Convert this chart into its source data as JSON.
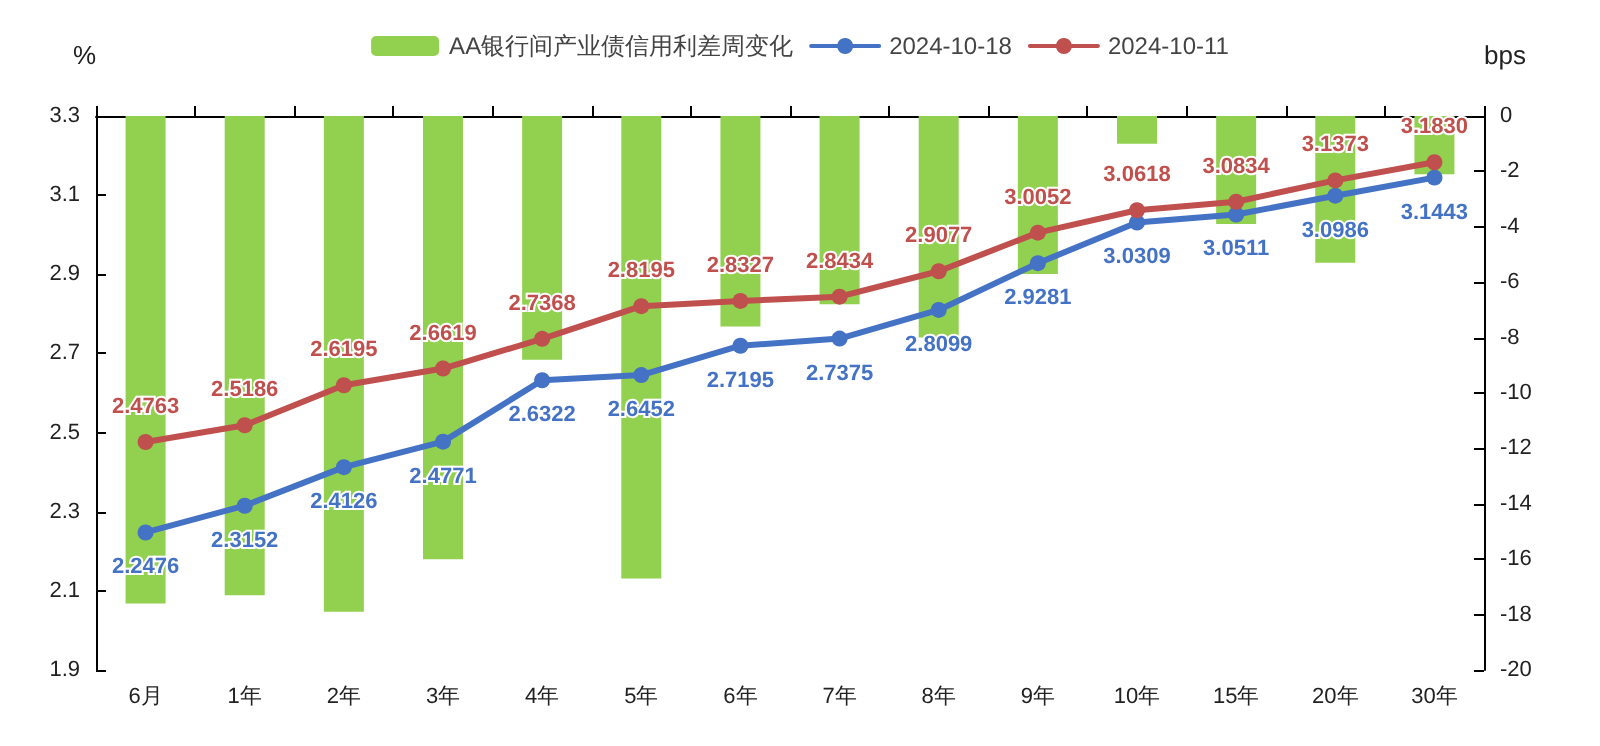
{
  "chart_data": {
    "type": "line",
    "categories": [
      "6月",
      "1年",
      "2年",
      "3年",
      "4年",
      "5年",
      "6年",
      "7年",
      "8年",
      "9年",
      "10年",
      "15年",
      "20年",
      "30年"
    ],
    "ylabel": "%",
    "y2label": "bps",
    "ylim": [
      1.9,
      3.3
    ],
    "yticks": [
      1.9,
      2.1,
      2.3,
      2.5,
      2.7,
      2.9,
      3.1,
      3.3
    ],
    "y2lim": [
      -20,
      0
    ],
    "y2ticks": [
      -20,
      -18,
      -16,
      -14,
      -12,
      -10,
      -8,
      -6,
      -4,
      -2,
      0
    ],
    "legend": "top",
    "grid": false,
    "marker": "circle",
    "series": [
      {
        "name": "AA银行间产业债信用利差周变化",
        "type": "bar",
        "axis": "y2",
        "color": "#92d050",
        "values": [
          -17.6,
          -17.3,
          -17.9,
          -16.0,
          -8.8,
          -16.7,
          -7.6,
          -6.8,
          -8.0,
          -5.7,
          -1.0,
          -3.9,
          -5.3,
          -2.1
        ]
      },
      {
        "name": "2024-10-18",
        "color": "#4472c4",
        "values": [
          2.2476,
          2.3152,
          2.4126,
          2.4771,
          2.6322,
          2.6452,
          2.7195,
          2.7375,
          2.8099,
          2.9281,
          3.0309,
          3.0511,
          3.0986,
          3.1443
        ],
        "value_labels": [
          "2.2476",
          "2.3152",
          "2.4126",
          "2.4771",
          "2.6322",
          "2.6452",
          "2.7195",
          "2.7375",
          "2.8099",
          "2.9281",
          "3.0309",
          "3.0511",
          "3.0986",
          "3.1443"
        ]
      },
      {
        "name": "2024-10-11",
        "color": "#c0504d",
        "values": [
          2.4763,
          2.5186,
          2.6195,
          2.6619,
          2.7368,
          2.8195,
          2.8327,
          2.8434,
          2.9077,
          3.0052,
          3.0618,
          3.0834,
          3.1373,
          3.183
        ],
        "value_labels": [
          "2.4763",
          "2.5186",
          "2.6195",
          "2.6619",
          "2.7368",
          "2.8195",
          "2.8327",
          "2.8434",
          "2.9077",
          "3.0052",
          "3.0618",
          "3.0834",
          "3.1373",
          "3.1830"
        ]
      }
    ]
  }
}
